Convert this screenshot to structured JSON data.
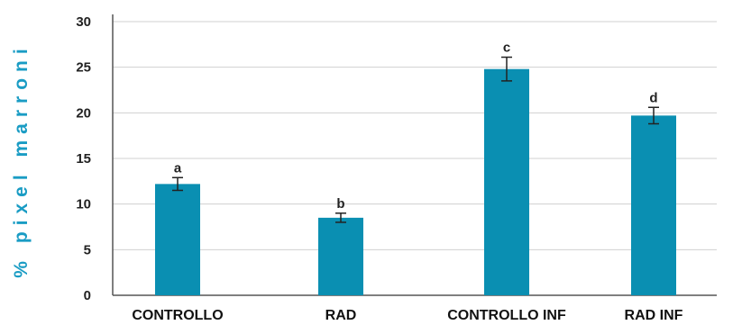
{
  "chart_data": {
    "type": "bar",
    "title": "",
    "xlabel": "",
    "ylabel": "% pixel marroni",
    "categories": [
      "CONTROLLO",
      "RAD",
      "CONTROLLO INF",
      "RAD INF"
    ],
    "values": [
      12.2,
      8.5,
      24.8,
      19.7
    ],
    "errors": [
      0.7,
      0.5,
      1.3,
      0.9
    ],
    "significance_letters": [
      "a",
      "b",
      "c",
      "d"
    ],
    "ylim": [
      0,
      30
    ],
    "yticks": [
      0,
      5,
      10,
      15,
      20,
      25,
      30
    ],
    "grid": true,
    "legend": "none",
    "colors": {
      "bar": "#0a8fb2",
      "ylabel": "#1a9cc4",
      "grid": "#d0d0d0",
      "axis": "#555555",
      "error": "#222222"
    }
  }
}
